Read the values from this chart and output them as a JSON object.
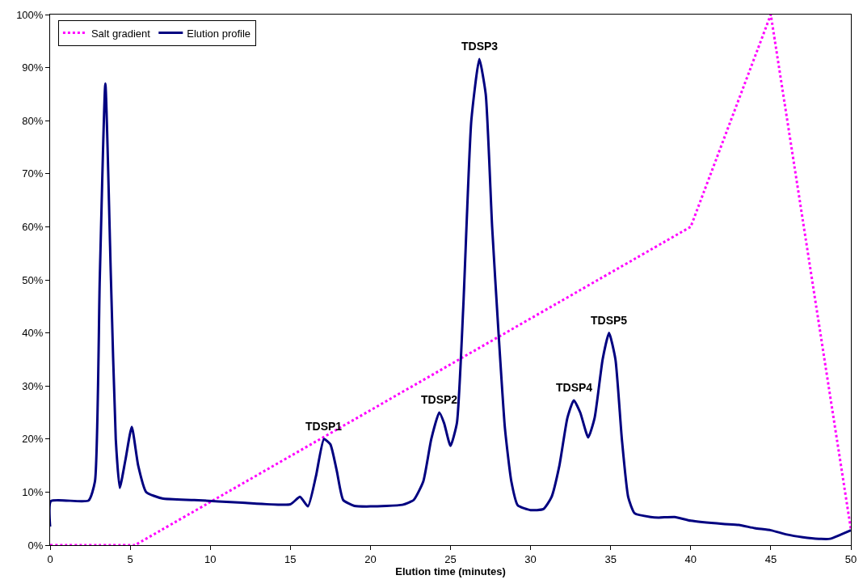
{
  "chart_data": {
    "type": "line",
    "xlabel": "Elution time (minutes)",
    "xlim": [
      0,
      50
    ],
    "xticks": [
      0,
      5,
      10,
      15,
      20,
      25,
      30,
      35,
      40,
      45,
      50
    ],
    "ylim": [
      0,
      100
    ],
    "yticks": [
      {
        "value": 0,
        "label": "0%"
      },
      {
        "value": 10,
        "label": "10%"
      },
      {
        "value": 20,
        "label": "20%"
      },
      {
        "value": 30,
        "label": "30%"
      },
      {
        "value": 40,
        "label": "40%"
      },
      {
        "value": 50,
        "label": "50%"
      },
      {
        "value": 60,
        "label": "60%"
      },
      {
        "value": 70,
        "label": "70%"
      },
      {
        "value": 80,
        "label": "80%"
      },
      {
        "value": 90,
        "label": "90%"
      },
      {
        "value": 100,
        "label": "100%"
      }
    ],
    "legend": "top left",
    "marker": "none",
    "series": [
      {
        "name": "Salt gradient",
        "color": "#ff00ff",
        "line_style": "dotted",
        "x": [
          0,
          5.3,
          40,
          45,
          50
        ],
        "values": [
          0,
          0,
          60,
          100,
          3
        ]
      },
      {
        "name": "Elution profile",
        "color": "#000080",
        "line_style": "solid",
        "x": [
          0,
          0.05,
          2.4,
          2.8,
          3.1,
          3.45,
          3.8,
          4.1,
          4.35,
          4.7,
          5.1,
          5.5,
          6,
          7,
          9,
          12,
          15,
          15.6,
          16.1,
          16.6,
          17.1,
          17.5,
          17.9,
          18.3,
          19,
          20,
          22,
          22.7,
          23.3,
          23.8,
          24.3,
          24.6,
          25,
          25.4,
          25.8,
          26.3,
          26.8,
          27.2,
          27.6,
          28,
          28.4,
          28.8,
          29.2,
          30,
          30.8,
          31.3,
          31.8,
          32.3,
          32.7,
          33.1,
          33.6,
          34,
          34.5,
          34.9,
          35.3,
          35.7,
          36.1,
          36.5,
          37.5,
          38,
          39,
          40,
          42,
          43,
          44,
          45,
          46,
          47,
          48,
          48.7,
          49.3,
          50
        ],
        "values": [
          3.5,
          8.3,
          8.4,
          12,
          50,
          87,
          50,
          20,
          10.8,
          16,
          22.3,
          15,
          10,
          8.8,
          8.5,
          8,
          7.7,
          9.1,
          7.3,
          13,
          20,
          19,
          14,
          8.5,
          7.4,
          7.3,
          7.6,
          8.5,
          12,
          20,
          25,
          23,
          18.7,
          23,
          45,
          80,
          91.6,
          85,
          60,
          40,
          22,
          12,
          7.5,
          6.6,
          6.8,
          9,
          15,
          24,
          27.3,
          25,
          20.3,
          24,
          35,
          40,
          35,
          20,
          9,
          6,
          5.3,
          5.2,
          5.3,
          4.6,
          4,
          3.8,
          3.2,
          2.8,
          2,
          1.5,
          1.2,
          1.2,
          1.9,
          2.8
        ]
      }
    ],
    "annotations": [
      {
        "text": "TDSP1",
        "x": 17.1,
        "y": 20
      },
      {
        "text": "TDSP2",
        "x": 24.3,
        "y": 25
      },
      {
        "text": "TDSP3",
        "x": 26.8,
        "y": 91.6
      },
      {
        "text": "TDSP4",
        "x": 32.7,
        "y": 27.3
      },
      {
        "text": "TDSP5",
        "x": 34.9,
        "y": 40
      }
    ]
  }
}
